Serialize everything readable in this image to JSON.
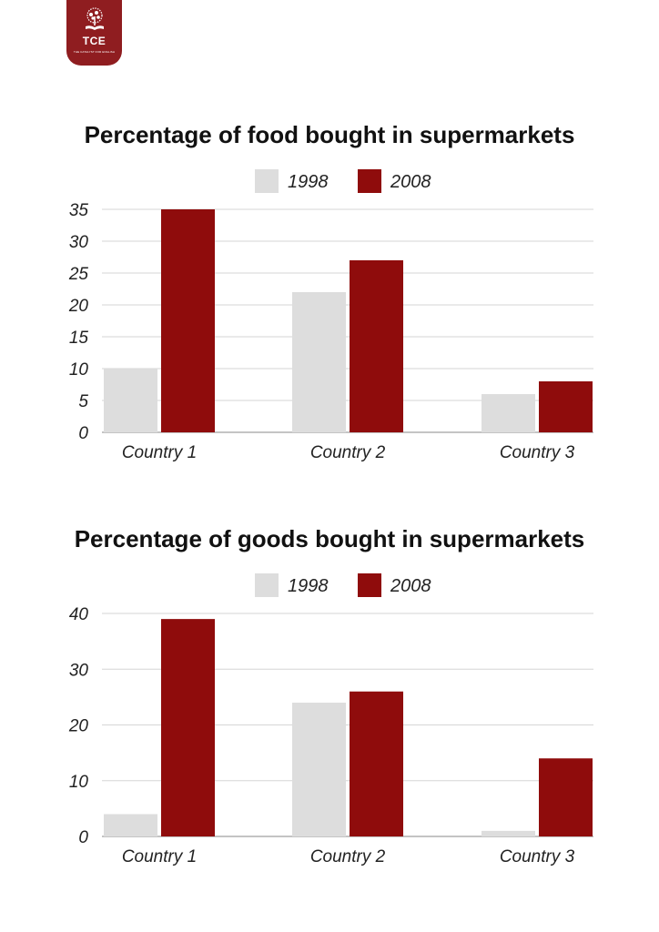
{
  "logo": {
    "abbr": "TCE",
    "tagline": "THE CATALYST FOR ENGLISH"
  },
  "colors": {
    "series_1998": "#dddddd",
    "series_2008": "#8f0c0c",
    "grid": "#d6d6d6",
    "axis": "#888888",
    "logo_bg": "#8f1d20"
  },
  "chart_data": [
    {
      "type": "bar",
      "title": "Percentage of food bought in  supermarkets",
      "categories": [
        "Country 1",
        "Country 2",
        "Country 3"
      ],
      "series": [
        {
          "name": "1998",
          "values": [
            10,
            22,
            6
          ]
        },
        {
          "name": "2008",
          "values": [
            35,
            27,
            8
          ]
        }
      ],
      "ylim": [
        0,
        35
      ],
      "yticks": [
        0,
        5,
        10,
        15,
        20,
        25,
        30,
        35
      ],
      "xlabel": "",
      "ylabel": "",
      "legend": "top-center",
      "grid": true
    },
    {
      "type": "bar",
      "title": "Percentage of goods bought in  supermarkets",
      "categories": [
        "Country 1",
        "Country 2",
        "Country 3"
      ],
      "series": [
        {
          "name": "1998",
          "values": [
            4,
            24,
            1
          ]
        },
        {
          "name": "2008",
          "values": [
            39,
            26,
            14
          ]
        }
      ],
      "ylim": [
        0,
        40
      ],
      "yticks": [
        0,
        10,
        20,
        30,
        40
      ],
      "xlabel": "",
      "ylabel": "",
      "legend": "top-center",
      "grid": true
    }
  ]
}
